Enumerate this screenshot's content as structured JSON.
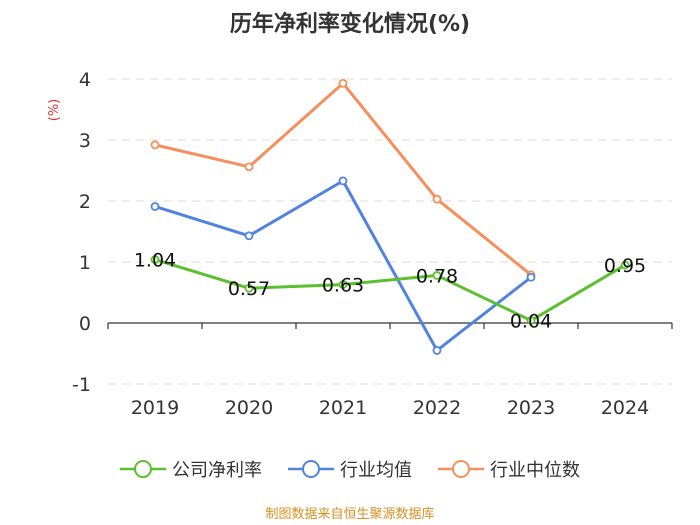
{
  "colors": {
    "company": "#5ac02e",
    "industry_avg": "#5083e0",
    "industry_median": "#f68f5c",
    "source": "#d99020",
    "ylabel": "#e03030"
  },
  "source_text": "制图数据来自恒生聚源数据库",
  "chart_data": {
    "type": "line",
    "title": "历年净利率变化情况(%)",
    "xlabel": "",
    "ylabel": "(%)",
    "categories": [
      "2019",
      "2020",
      "2021",
      "2022",
      "2023",
      "2024"
    ],
    "ylim": [
      -1,
      4
    ],
    "yticks": [
      -1,
      0,
      1,
      2,
      3,
      4
    ],
    "grid": true,
    "legend": "bottom-center",
    "series": [
      {
        "name": "公司净利率",
        "key": "company",
        "values": [
          1.04,
          0.57,
          0.63,
          0.78,
          0.04,
          0.95
        ],
        "labels": [
          "1.04",
          "0.57",
          "0.63",
          "0.78",
          "0.04",
          "0.95"
        ]
      },
      {
        "name": "行业均值",
        "key": "industry_avg",
        "values": [
          1.91,
          1.43,
          2.33,
          -0.45,
          0.75,
          null
        ]
      },
      {
        "name": "行业中位数",
        "key": "industry_median",
        "values": [
          2.92,
          2.56,
          3.93,
          2.03,
          0.79,
          null
        ]
      }
    ]
  }
}
